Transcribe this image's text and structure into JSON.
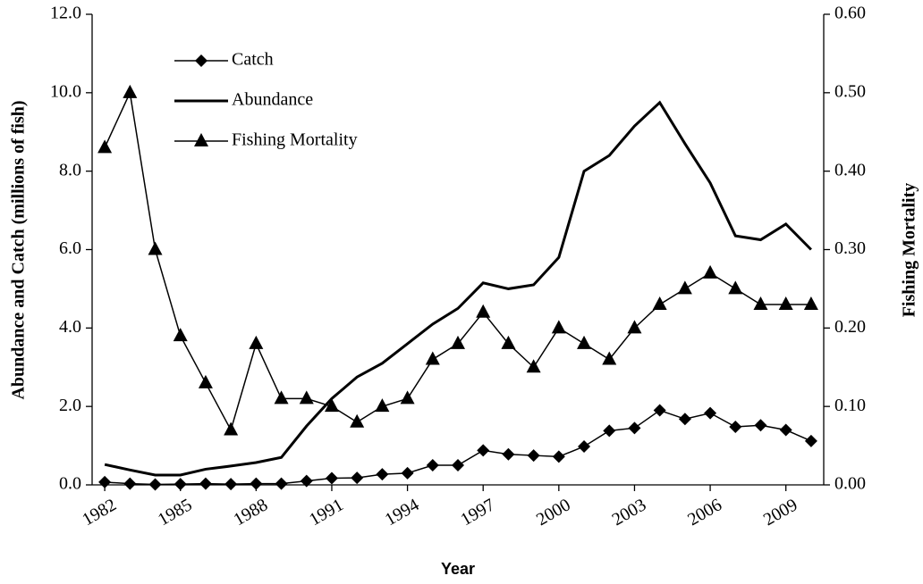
{
  "chart_data": {
    "type": "line",
    "x_label": "Year",
    "y_label": "Abundance  and Catch (millions of fish)",
    "y2_label": "Fishing Mortality",
    "x": [
      1982,
      1983,
      1984,
      1985,
      1986,
      1987,
      1988,
      1989,
      1990,
      1991,
      1992,
      1993,
      1994,
      1995,
      1996,
      1997,
      1998,
      1999,
      2000,
      2001,
      2002,
      2003,
      2004,
      2005,
      2006,
      2007,
      2008,
      2009,
      2010
    ],
    "xlim": [
      1981.5,
      2010.5
    ],
    "xticks": [
      1982,
      1985,
      1988,
      1991,
      1994,
      1997,
      2000,
      2003,
      2006,
      2009
    ],
    "ylim": [
      0,
      12
    ],
    "yticks": [
      {
        "value": 0,
        "label": "0.0"
      },
      {
        "value": 2,
        "label": "2.0"
      },
      {
        "value": 4,
        "label": "4.0"
      },
      {
        "value": 6,
        "label": "6.0"
      },
      {
        "value": 8,
        "label": "8.0"
      },
      {
        "value": 10,
        "label": "10.0"
      },
      {
        "value": 12,
        "label": "12.0"
      }
    ],
    "y2lim": [
      0,
      0.6
    ],
    "y2ticks": [
      {
        "value": 0,
        "label": "0.00"
      },
      {
        "value": 0.1,
        "label": "0.10"
      },
      {
        "value": 0.2,
        "label": "0.20"
      },
      {
        "value": 0.3,
        "label": "0.30"
      },
      {
        "value": 0.4,
        "label": "0.40"
      },
      {
        "value": 0.5,
        "label": "0.50"
      },
      {
        "value": 0.6,
        "label": "0.60"
      }
    ],
    "legend": "upper left",
    "series": [
      {
        "name": "Catch",
        "color": "#000000",
        "marker": "diamond",
        "values": [
          0.07,
          0.03,
          0.01,
          0.02,
          0.03,
          0.02,
          0.03,
          0.03,
          0.1,
          0.17,
          0.18,
          0.27,
          0.3,
          0.5,
          0.5,
          0.88,
          0.78,
          0.75,
          0.72,
          0.98,
          1.38,
          1.45,
          1.9,
          1.68,
          1.83,
          1.48,
          1.52,
          1.4,
          1.12
        ]
      },
      {
        "name": "Abundance",
        "color": "#000000",
        "marker": "none",
        "values": [
          0.52,
          0.38,
          0.25,
          0.25,
          0.4,
          0.48,
          0.57,
          0.7,
          1.5,
          2.2,
          2.75,
          3.1,
          3.6,
          4.1,
          4.5,
          5.15,
          5.0,
          5.1,
          5.8,
          8.0,
          8.4,
          9.15,
          9.75,
          8.7,
          7.7,
          6.35,
          6.25,
          6.65,
          6.0
        ]
      },
      {
        "name": "Fishing Mortality",
        "color": "#000000",
        "marker": "triangle",
        "axis": "y2",
        "values": [
          0.43,
          0.5,
          0.3,
          0.19,
          0.13,
          0.07,
          0.18,
          0.11,
          0.11,
          0.1,
          0.08,
          0.1,
          0.11,
          0.16,
          0.18,
          0.22,
          0.18,
          0.15,
          0.2,
          0.18,
          0.16,
          0.2,
          0.23,
          0.25,
          0.27,
          0.25,
          0.23,
          0.23,
          0.23
        ]
      }
    ]
  }
}
